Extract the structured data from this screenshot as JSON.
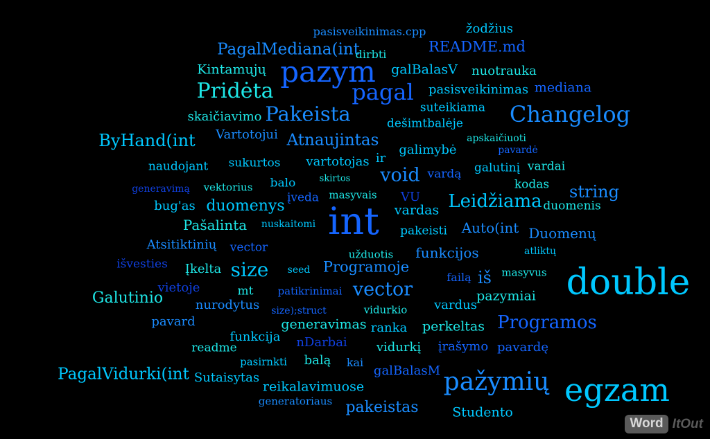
{
  "palette": {
    "c": "#00c8ff",
    "t": "#1ee6e6",
    "m": "#1a8cff",
    "b": "#1565ff",
    "d": "#1040e0",
    "l": "#2ab4ff"
  },
  "words": [
    {
      "text": "pasisveikinimas.cpp",
      "color": "m"
    },
    {
      "text": "žodžius",
      "color": "c"
    },
    {
      "text": "PagalMediana(int",
      "color": "m"
    },
    {
      "text": "dirbti",
      "color": "t"
    },
    {
      "text": "README.md",
      "color": "b"
    },
    {
      "text": "Kintamųjų",
      "color": "t"
    },
    {
      "text": "pazym",
      "color": "b"
    },
    {
      "text": "galBalasV",
      "color": "c"
    },
    {
      "text": "nuotrauka",
      "color": "t"
    },
    {
      "text": "Pridėta",
      "color": "t"
    },
    {
      "text": "pagal",
      "color": "b"
    },
    {
      "text": "pasisveikinimas",
      "color": "c"
    },
    {
      "text": "mediana",
      "color": "b"
    },
    {
      "text": "suteikiama",
      "color": "c"
    },
    {
      "text": "skaičiavimo",
      "color": "t"
    },
    {
      "text": "Pakeista",
      "color": "m"
    },
    {
      "text": "Changelog",
      "color": "m"
    },
    {
      "text": "dešimtbalėje",
      "color": "c"
    },
    {
      "text": "Vartotojui",
      "color": "m"
    },
    {
      "text": "ByHand(int",
      "color": "c"
    },
    {
      "text": "Atnaujintas",
      "color": "m"
    },
    {
      "text": "apskaičiuoti",
      "color": "t"
    },
    {
      "text": "pavardė",
      "color": "b"
    },
    {
      "text": "galimybė",
      "color": "c"
    },
    {
      "text": "ir",
      "color": "c"
    },
    {
      "text": "sukurtos",
      "color": "c"
    },
    {
      "text": "vartotojas",
      "color": "c"
    },
    {
      "text": "galutinį",
      "color": "c"
    },
    {
      "text": "naudojant",
      "color": "c"
    },
    {
      "text": "void",
      "color": "m"
    },
    {
      "text": "vardą",
      "color": "b"
    },
    {
      "text": "vardai",
      "color": "t"
    },
    {
      "text": "generavimą",
      "color": "d"
    },
    {
      "text": "vektorius",
      "color": "t"
    },
    {
      "text": "balo",
      "color": "c"
    },
    {
      "text": "skirtos",
      "color": "t"
    },
    {
      "text": "kodas",
      "color": "t"
    },
    {
      "text": "masyvais",
      "color": "t"
    },
    {
      "text": "VU",
      "color": "d"
    },
    {
      "text": "string",
      "color": "m"
    },
    {
      "text": "įveda",
      "color": "b"
    },
    {
      "text": "Leidžiama",
      "color": "c"
    },
    {
      "text": "bug'as",
      "color": "c"
    },
    {
      "text": "duomenys",
      "color": "c"
    },
    {
      "text": "int",
      "color": "b"
    },
    {
      "text": "vardas",
      "color": "c"
    },
    {
      "text": "duomenis",
      "color": "t"
    },
    {
      "text": "Pašalinta",
      "color": "t"
    },
    {
      "text": "nuskaitomi",
      "color": "c"
    },
    {
      "text": "pakeisti",
      "color": "c"
    },
    {
      "text": "Auto(int",
      "color": "m"
    },
    {
      "text": "Duomenų",
      "color": "m"
    },
    {
      "text": "Atsitiktinių",
      "color": "m"
    },
    {
      "text": "vector",
      "color": "b"
    },
    {
      "text": "užduotis",
      "color": "t"
    },
    {
      "text": "funkcijos",
      "color": "m"
    },
    {
      "text": "atliktų",
      "color": "c"
    },
    {
      "text": "išvesties",
      "color": "d"
    },
    {
      "text": "Įkelta",
      "color": "t"
    },
    {
      "text": "size",
      "color": "c"
    },
    {
      "text": "seed",
      "color": "c"
    },
    {
      "text": "Programoje",
      "color": "m"
    },
    {
      "text": "failą",
      "color": "b"
    },
    {
      "text": "iš",
      "color": "m"
    },
    {
      "text": "masyvus",
      "color": "t"
    },
    {
      "text": "double",
      "color": "c"
    },
    {
      "text": "vietoje",
      "color": "d"
    },
    {
      "text": "mt",
      "color": "t"
    },
    {
      "text": "patikrinimai",
      "color": "b"
    },
    {
      "text": "vector",
      "color": "m"
    },
    {
      "text": "Galutinio",
      "color": "t"
    },
    {
      "text": "nurodytus",
      "color": "m"
    },
    {
      "text": "size);struct",
      "color": "b"
    },
    {
      "text": "vidurkio",
      "color": "t"
    },
    {
      "text": "vardus",
      "color": "c"
    },
    {
      "text": "pazymiai",
      "color": "t"
    },
    {
      "text": "pavard",
      "color": "m"
    },
    {
      "text": "generavimas",
      "color": "t"
    },
    {
      "text": "ranka",
      "color": "c"
    },
    {
      "text": "perkeltas",
      "color": "t"
    },
    {
      "text": "Programos",
      "color": "b"
    },
    {
      "text": "funkcija",
      "color": "c"
    },
    {
      "text": "nDarbai",
      "color": "d"
    },
    {
      "text": "readme",
      "color": "t"
    },
    {
      "text": "vidurkį",
      "color": "t"
    },
    {
      "text": "įrašymo",
      "color": "b"
    },
    {
      "text": "pavardę",
      "color": "b"
    },
    {
      "text": "pasirnkti",
      "color": "c"
    },
    {
      "text": "balą",
      "color": "t"
    },
    {
      "text": "kai",
      "color": "m"
    },
    {
      "text": "galBalasM",
      "color": "b"
    },
    {
      "text": "PagalVidurki(int",
      "color": "c"
    },
    {
      "text": "Sutaisytas",
      "color": "c"
    },
    {
      "text": "reikalavimuose",
      "color": "c"
    },
    {
      "text": "pažymių",
      "color": "m"
    },
    {
      "text": "egzam",
      "color": "c"
    },
    {
      "text": "generatoriaus",
      "color": "m"
    },
    {
      "text": "pakeistas",
      "color": "m"
    },
    {
      "text": "Studento",
      "color": "c"
    }
  ],
  "logo": {
    "word": "Word",
    "itout": "ItOut"
  }
}
